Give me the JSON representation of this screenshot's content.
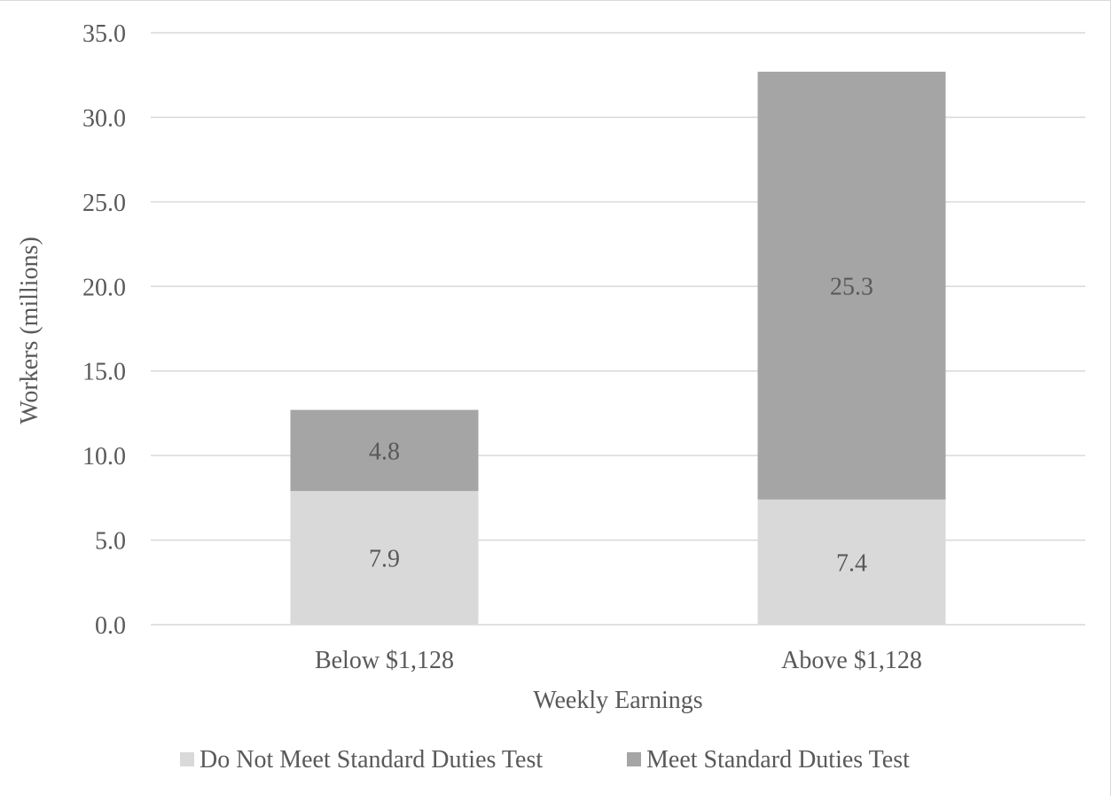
{
  "chart_data": {
    "type": "bar",
    "stacked": true,
    "title": "",
    "xlabel": "Weekly Earnings",
    "ylabel": "Workers (millions)",
    "categories": [
      "Below $1,128",
      "Above $1,128"
    ],
    "series": [
      {
        "name": "Do Not Meet Standard Duties Test",
        "values": [
          7.9,
          7.4
        ],
        "labels": [
          "7.9",
          "7.4"
        ],
        "color": "#d9d9d9"
      },
      {
        "name": "Meet Standard Duties Test",
        "values": [
          4.8,
          25.3
        ],
        "labels": [
          "4.8",
          "25.3"
        ],
        "color": "#a5a5a5"
      }
    ],
    "ylim": [
      0,
      35
    ],
    "yticks": [
      "0.0",
      "5.0",
      "10.0",
      "15.0",
      "20.0",
      "25.0",
      "30.0",
      "35.0"
    ],
    "grid": true,
    "legend_position": "bottom",
    "gridline_color": "#d9d9d9",
    "text_color": "#595959"
  }
}
